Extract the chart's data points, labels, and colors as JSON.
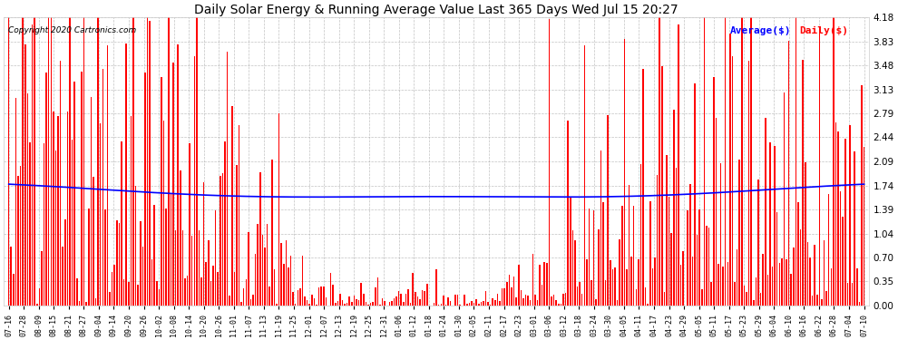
{
  "title": "Daily Solar Energy & Running Average Value Last 365 Days Wed Jul 15 20:27",
  "copyright": "Copyright 2020 Cartronics.com",
  "legend_average": "Average($)",
  "legend_daily": "Daily($)",
  "bar_color": "#ff0000",
  "avg_line_color": "#0000ff",
  "background_color": "#ffffff",
  "plot_bg_color": "#ffffff",
  "grid_color": "#999999",
  "yticks": [
    0.0,
    0.35,
    0.7,
    1.04,
    1.39,
    1.74,
    2.09,
    2.44,
    2.79,
    3.13,
    3.48,
    3.83,
    4.18
  ],
  "ylim": [
    0.0,
    4.18
  ],
  "num_bars": 365,
  "x_tick_labels": [
    "07-16",
    "07-28",
    "08-09",
    "08-15",
    "08-21",
    "08-27",
    "09-04",
    "09-14",
    "09-20",
    "09-26",
    "10-02",
    "10-08",
    "10-14",
    "10-20",
    "10-26",
    "11-01",
    "11-07",
    "11-13",
    "11-19",
    "11-25",
    "12-01",
    "12-07",
    "12-13",
    "12-19",
    "12-25",
    "12-31",
    "01-06",
    "01-12",
    "01-18",
    "01-24",
    "01-30",
    "02-05",
    "02-11",
    "02-17",
    "02-23",
    "03-01",
    "03-06",
    "03-12",
    "03-18",
    "03-24",
    "03-30",
    "04-05",
    "04-11",
    "04-17",
    "04-23",
    "04-29",
    "05-05",
    "05-11",
    "05-17",
    "05-23",
    "05-29",
    "06-04",
    "06-10",
    "06-16",
    "06-22",
    "06-28",
    "07-04",
    "07-10"
  ]
}
